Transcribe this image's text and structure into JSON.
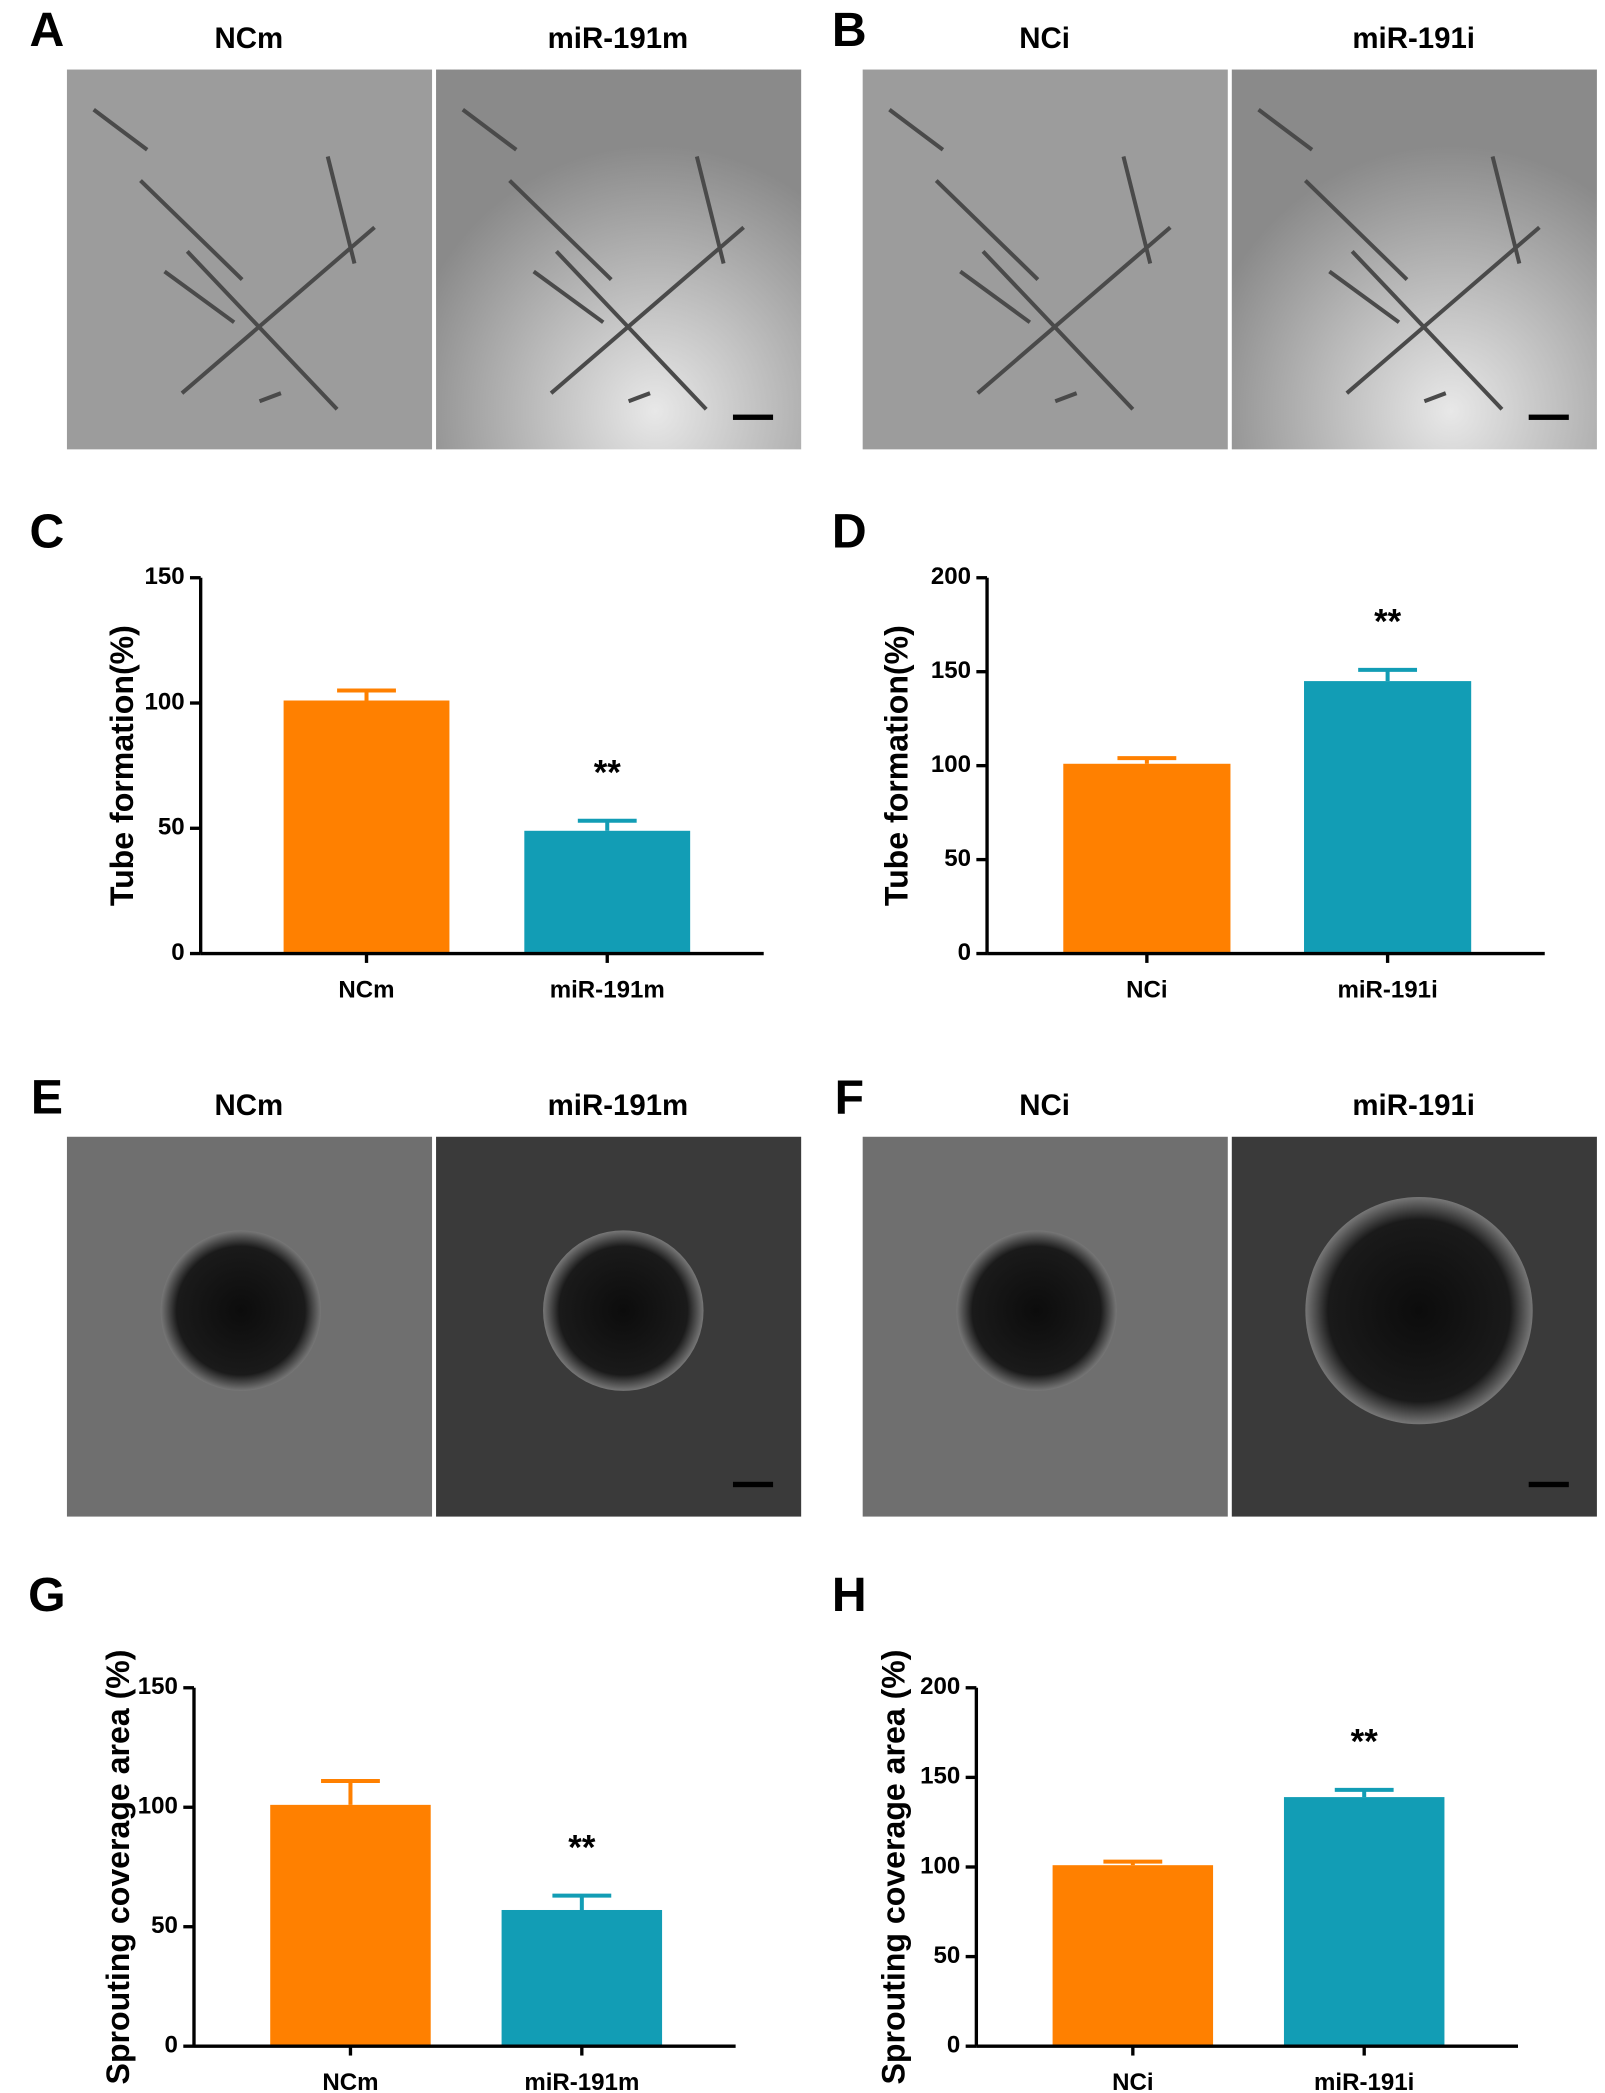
{
  "figure": {
    "image_panels": [
      {
        "label": "A",
        "titles": [
          "NCm",
          "miR-191m"
        ]
      },
      {
        "label": "B",
        "titles": [
          "NCi",
          "miR-191i"
        ]
      },
      {
        "label": "E",
        "titles": [
          "NCm",
          "miR-191m"
        ]
      },
      {
        "label": "F",
        "titles": [
          "NCi",
          "miR-191i"
        ]
      }
    ]
  },
  "chart_data": [
    {
      "type": "bar",
      "panel": "C",
      "y_label": "Tube formation(%)",
      "categories": [
        "NCm",
        "miR-191m"
      ],
      "values": [
        101,
        49
      ],
      "errors": [
        4,
        4
      ],
      "colors": [
        "#ff8000",
        "#129db5"
      ],
      "ylim": [
        0,
        150
      ],
      "yticks": [
        0,
        50,
        100,
        150
      ],
      "annotation": "**"
    },
    {
      "type": "bar",
      "panel": "D",
      "y_label": "Tube formation(%)",
      "categories": [
        "NCi",
        "miR-191i"
      ],
      "values": [
        101,
        145
      ],
      "errors": [
        3,
        6
      ],
      "colors": [
        "#ff8000",
        "#129db5"
      ],
      "ylim": [
        0,
        200
      ],
      "yticks": [
        0,
        50,
        100,
        150,
        200
      ],
      "annotation": "**"
    },
    {
      "type": "bar",
      "panel": "G",
      "y_label": "Sprouting coverage area (%)",
      "categories": [
        "NCm",
        "miR-191m"
      ],
      "values": [
        101,
        57
      ],
      "errors": [
        10,
        6
      ],
      "colors": [
        "#ff8000",
        "#129db5"
      ],
      "ylim": [
        0,
        150
      ],
      "yticks": [
        0,
        50,
        100,
        150
      ],
      "annotation": "**"
    },
    {
      "type": "bar",
      "panel": "H",
      "y_label": "Sprouting coverage area (%)",
      "categories": [
        "NCi",
        "miR-191i"
      ],
      "values": [
        101,
        139
      ],
      "errors": [
        2,
        4
      ],
      "colors": [
        "#ff8000",
        "#129db5"
      ],
      "ylim": [
        0,
        200
      ],
      "yticks": [
        0,
        50,
        100,
        150,
        200
      ],
      "annotation": "**"
    }
  ]
}
